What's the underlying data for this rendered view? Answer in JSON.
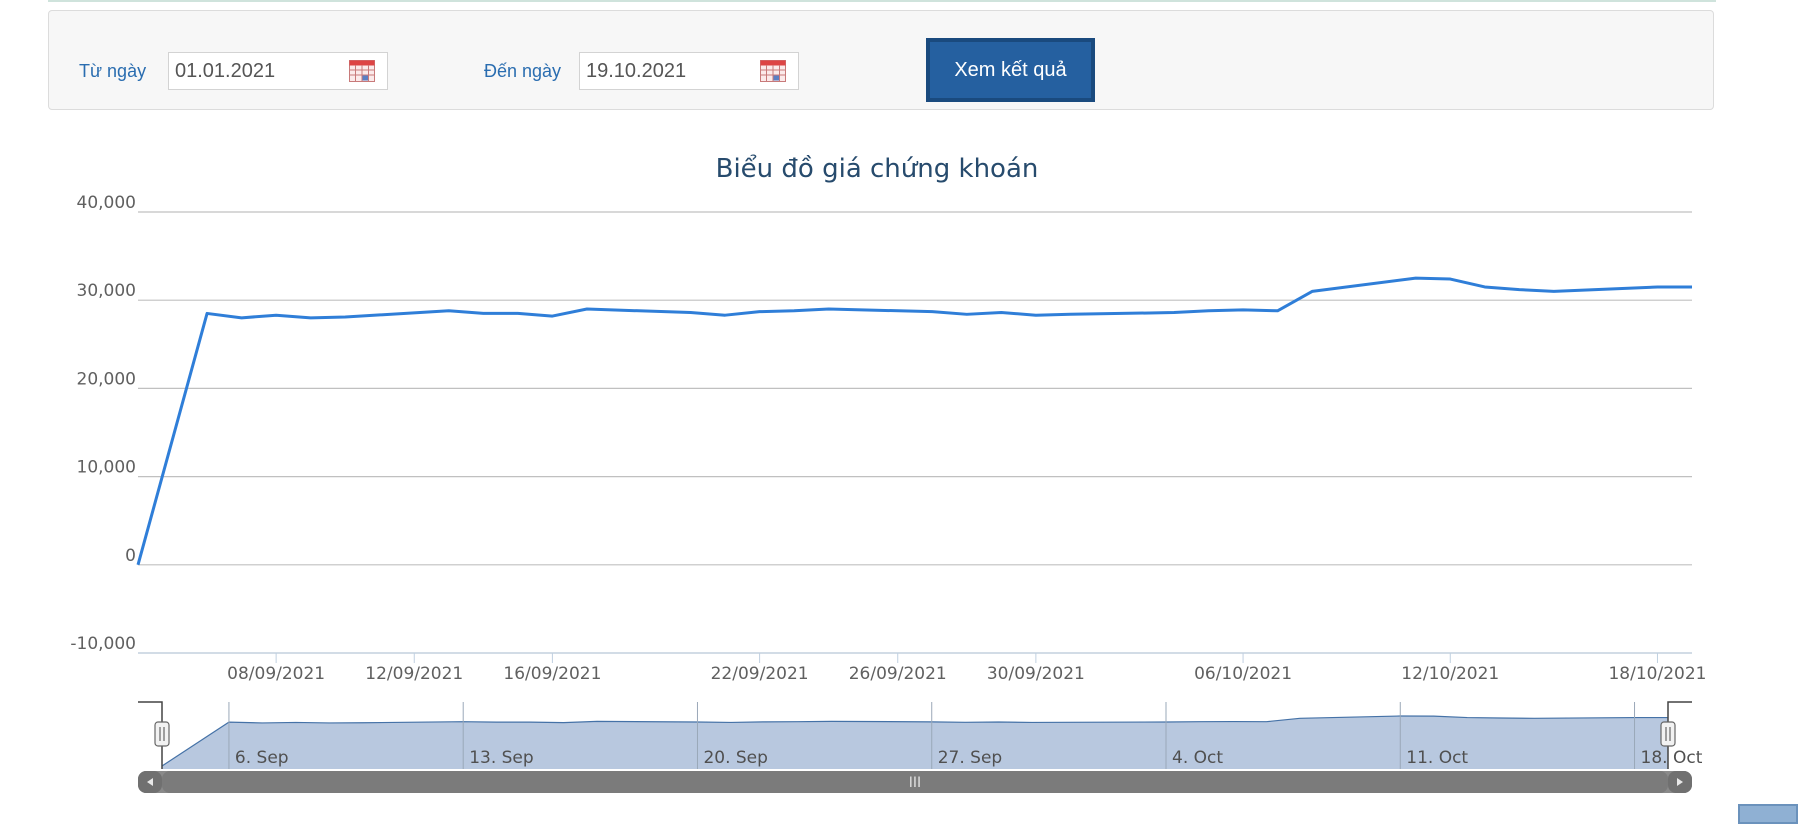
{
  "filter": {
    "from_label": "Từ ngày",
    "from_value": "01.01.2021",
    "to_label": "Đến ngày",
    "to_value": "19.10.2021",
    "submit_label": "Xem kết quả"
  },
  "icons": {
    "calendar": "calendar-icon"
  },
  "colors": {
    "line": "#2f7ed8",
    "navigator_fill": "#b8c8df",
    "navigator_line": "#4572a7",
    "button": "#2560a0",
    "title": "#274b6d"
  },
  "navigator": {
    "labels": [
      "6. Sep",
      "13. Sep",
      "20. Sep",
      "27. Sep",
      "4. Oct",
      "11. Oct",
      "18. Oct"
    ],
    "handle_symbol": "III"
  },
  "chart_data": {
    "type": "line",
    "title": "Biểu đồ giá chứng khoán",
    "xlabel": "",
    "ylabel": "",
    "ylim": [
      -10000,
      40000
    ],
    "yticks": [
      "40,000",
      "30,000",
      "20,000",
      "10,000",
      "0",
      "-10,000"
    ],
    "xticks": [
      "08/09/2021",
      "12/09/2021",
      "16/09/2021",
      "22/09/2021",
      "26/09/2021",
      "30/09/2021",
      "06/10/2021",
      "12/10/2021",
      "18/10/2021"
    ],
    "grid": true,
    "legend": "none",
    "series": [
      {
        "x": [
          "2021-09-04",
          "2021-09-06",
          "2021-09-07",
          "2021-09-08",
          "2021-09-09",
          "2021-09-10",
          "2021-09-13",
          "2021-09-14",
          "2021-09-15",
          "2021-09-16",
          "2021-09-17",
          "2021-09-20",
          "2021-09-21",
          "2021-09-22",
          "2021-09-23",
          "2021-09-24",
          "2021-09-27",
          "2021-09-28",
          "2021-09-29",
          "2021-09-30",
          "2021-10-01",
          "2021-10-04",
          "2021-10-05",
          "2021-10-06",
          "2021-10-07",
          "2021-10-08",
          "2021-10-11",
          "2021-10-12",
          "2021-10-13",
          "2021-10-14",
          "2021-10-15",
          "2021-10-18",
          "2021-10-19"
        ],
        "values": [
          0,
          28500,
          28000,
          28300,
          28000,
          28100,
          28800,
          28500,
          28500,
          28200,
          29000,
          28600,
          28300,
          28700,
          28800,
          29000,
          28700,
          28400,
          28600,
          28300,
          28400,
          28600,
          28800,
          28900,
          28800,
          31000,
          32500,
          32400,
          31500,
          31200,
          31000,
          31500,
          31500
        ]
      }
    ]
  }
}
